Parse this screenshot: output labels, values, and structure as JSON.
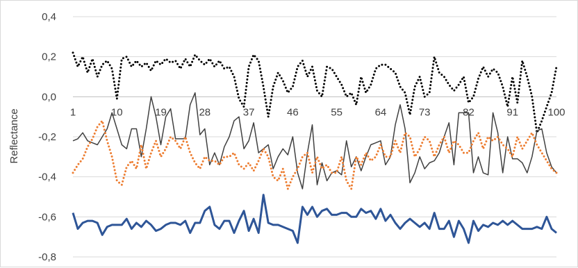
{
  "chart_data": {
    "type": "line",
    "title": "",
    "xlabel": "",
    "ylabel": "Reflectance",
    "ylim": [
      -0.8,
      0.4
    ],
    "y_ticks": [
      -0.8,
      -0.6,
      -0.4,
      -0.2,
      0.0,
      0.2,
      0.4
    ],
    "y_tick_labels": [
      "-0,8",
      "-0,6",
      "-0,4",
      "-0,2",
      "0,0",
      "0,2",
      "0,4"
    ],
    "x_ticks": [
      1,
      10,
      19,
      28,
      37,
      46,
      55,
      64,
      73,
      82,
      91,
      100
    ],
    "x_tick_labels": [
      "1",
      "10",
      "19",
      "28",
      "37",
      "46",
      "55",
      "64",
      "73",
      "82",
      "91",
      "100"
    ],
    "x": [
      1,
      2,
      3,
      4,
      5,
      6,
      7,
      8,
      9,
      10,
      11,
      12,
      13,
      14,
      15,
      16,
      17,
      18,
      19,
      20,
      21,
      22,
      23,
      24,
      25,
      26,
      27,
      28,
      29,
      30,
      31,
      32,
      33,
      34,
      35,
      36,
      37,
      38,
      39,
      40,
      41,
      42,
      43,
      44,
      45,
      46,
      47,
      48,
      49,
      50,
      51,
      52,
      53,
      54,
      55,
      56,
      57,
      58,
      59,
      60,
      61,
      62,
      63,
      64,
      65,
      66,
      67,
      68,
      69,
      70,
      71,
      72,
      73,
      74,
      75,
      76,
      77,
      78,
      79,
      80,
      81,
      82,
      83,
      84,
      85,
      86,
      87,
      88,
      89,
      90,
      91,
      92,
      93,
      94,
      95,
      96,
      97,
      98,
      99,
      100
    ],
    "grid": "horizontal",
    "legend": "none",
    "series": [
      {
        "color": "#000000",
        "style": "dotted",
        "width": 3,
        "values": [
          0.22,
          0.15,
          0.2,
          0.12,
          0.19,
          0.1,
          0.16,
          0.18,
          0.14,
          -0.01,
          0.19,
          0.2,
          0.15,
          0.18,
          0.15,
          0.17,
          0.13,
          0.18,
          0.16,
          0.19,
          0.17,
          0.18,
          0.14,
          0.19,
          0.15,
          0.21,
          0.18,
          0.16,
          0.19,
          0.15,
          0.18,
          0.14,
          0.15,
          0.1,
          -0.01,
          -0.05,
          0.15,
          0.21,
          0.18,
          0.05,
          -0.1,
          0.05,
          0.12,
          0.08,
          0.02,
          0.05,
          0.15,
          0.18,
          0.1,
          0.15,
          0.03,
          0.0,
          0.15,
          0.14,
          0.1,
          0.06,
          0.0,
          0.02,
          -0.04,
          0.1,
          0.02,
          0.06,
          0.14,
          0.16,
          0.16,
          0.14,
          0.12,
          0.05,
          0.02,
          -0.09,
          0.05,
          0.1,
          0.0,
          0.02,
          0.2,
          0.12,
          0.1,
          0.06,
          0.03,
          0.06,
          0.1,
          -0.03,
          0.0,
          0.09,
          0.15,
          0.1,
          0.14,
          0.12,
          0.05,
          -0.05,
          0.1,
          -0.03,
          0.18,
          0.1,
          0.0,
          -0.18,
          -0.12,
          -0.05,
          0.02,
          0.15
        ]
      },
      {
        "color": "#404040",
        "style": "solid",
        "width": 1.5,
        "values": [
          -0.22,
          -0.21,
          -0.18,
          -0.22,
          -0.23,
          -0.24,
          -0.2,
          -0.16,
          -0.08,
          -0.16,
          -0.24,
          -0.26,
          -0.16,
          -0.16,
          -0.3,
          -0.16,
          0.0,
          -0.1,
          -0.24,
          -0.1,
          -0.06,
          -0.21,
          -0.21,
          -0.21,
          -0.04,
          0.02,
          -0.19,
          -0.16,
          -0.34,
          -0.28,
          -0.34,
          -0.25,
          -0.2,
          -0.12,
          -0.1,
          -0.26,
          -0.22,
          -0.13,
          -0.28,
          -0.26,
          -0.24,
          -0.36,
          -0.3,
          -0.26,
          -0.29,
          -0.2,
          -0.38,
          -0.46,
          -0.28,
          -0.14,
          -0.44,
          -0.33,
          -0.42,
          -0.38,
          -0.37,
          -0.39,
          -0.22,
          -0.35,
          -0.3,
          -0.37,
          -0.3,
          -0.24,
          -0.23,
          -0.22,
          -0.34,
          -0.3,
          -0.14,
          -0.04,
          -0.16,
          -0.43,
          -0.38,
          -0.3,
          -0.36,
          -0.33,
          -0.32,
          -0.28,
          -0.2,
          -0.13,
          -0.34,
          -0.08,
          -0.08,
          -0.08,
          -0.38,
          -0.3,
          -0.38,
          -0.39,
          -0.08,
          -0.18,
          -0.38,
          -0.2,
          -0.31,
          -0.31,
          -0.33,
          -0.38,
          -0.3,
          -0.17,
          -0.16,
          -0.28,
          -0.35,
          -0.38
        ]
      },
      {
        "color": "#ed7d31",
        "style": "dotted",
        "width": 3,
        "values": [
          -0.38,
          -0.34,
          -0.31,
          -0.25,
          -0.21,
          -0.15,
          -0.12,
          -0.22,
          -0.3,
          -0.42,
          -0.44,
          -0.35,
          -0.32,
          -0.36,
          -0.24,
          -0.36,
          -0.28,
          -0.22,
          -0.3,
          -0.26,
          -0.2,
          -0.22,
          -0.26,
          -0.2,
          -0.28,
          -0.33,
          -0.36,
          -0.3,
          -0.32,
          -0.32,
          -0.34,
          -0.3,
          -0.3,
          -0.28,
          -0.34,
          -0.36,
          -0.33,
          -0.37,
          -0.32,
          -0.26,
          -0.3,
          -0.4,
          -0.42,
          -0.36,
          -0.46,
          -0.4,
          -0.36,
          -0.3,
          -0.28,
          -0.38,
          -0.3,
          -0.36,
          -0.34,
          -0.38,
          -0.38,
          -0.3,
          -0.42,
          -0.46,
          -0.3,
          -0.34,
          -0.28,
          -0.32,
          -0.3,
          -0.24,
          -0.3,
          -0.3,
          -0.22,
          -0.28,
          -0.18,
          -0.2,
          -0.3,
          -0.26,
          -0.2,
          -0.22,
          -0.3,
          -0.24,
          -0.2,
          -0.28,
          -0.22,
          -0.24,
          -0.28,
          -0.28,
          -0.22,
          -0.18,
          -0.26,
          -0.2,
          -0.22,
          -0.2,
          -0.24,
          -0.26,
          -0.3,
          -0.2,
          -0.26,
          -0.22,
          -0.18,
          -0.24,
          -0.28,
          -0.32,
          -0.36,
          -0.38
        ]
      },
      {
        "color": "#2e5597",
        "style": "solid",
        "width": 3,
        "values": [
          -0.58,
          -0.66,
          -0.63,
          -0.62,
          -0.62,
          -0.63,
          -0.69,
          -0.65,
          -0.64,
          -0.64,
          -0.64,
          -0.61,
          -0.66,
          -0.63,
          -0.65,
          -0.62,
          -0.64,
          -0.67,
          -0.66,
          -0.64,
          -0.63,
          -0.63,
          -0.64,
          -0.62,
          -0.68,
          -0.63,
          -0.63,
          -0.57,
          -0.55,
          -0.64,
          -0.66,
          -0.62,
          -0.62,
          -0.68,
          -0.62,
          -0.57,
          -0.67,
          -0.61,
          -0.68,
          -0.49,
          -0.63,
          -0.64,
          -0.64,
          -0.65,
          -0.66,
          -0.67,
          -0.73,
          -0.55,
          -0.59,
          -0.55,
          -0.6,
          -0.57,
          -0.56,
          -0.59,
          -0.59,
          -0.58,
          -0.58,
          -0.6,
          -0.6,
          -0.56,
          -0.58,
          -0.57,
          -0.61,
          -0.56,
          -0.62,
          -0.59,
          -0.63,
          -0.66,
          -0.63,
          -0.61,
          -0.63,
          -0.65,
          -0.63,
          -0.66,
          -0.58,
          -0.66,
          -0.66,
          -0.62,
          -0.7,
          -0.62,
          -0.66,
          -0.73,
          -0.62,
          -0.67,
          -0.64,
          -0.65,
          -0.63,
          -0.64,
          -0.62,
          -0.64,
          -0.62,
          -0.64,
          -0.66,
          -0.66,
          -0.66,
          -0.65,
          -0.66,
          -0.6,
          -0.66,
          -0.68
        ]
      }
    ]
  }
}
